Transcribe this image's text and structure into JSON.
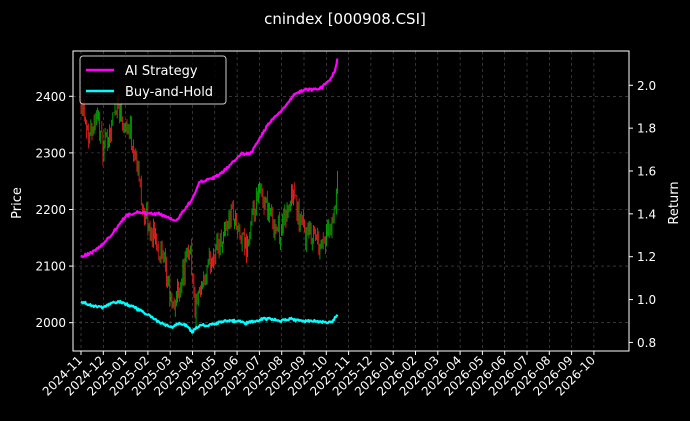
{
  "chart_data": {
    "type": "line",
    "title": "cnindex [000908.CSI]",
    "xlabel": "",
    "ylabel_left": "Price",
    "ylabel_right": "Return",
    "grid": true,
    "legend_position": "top-left",
    "x_tick_labels": [
      "2024-11",
      "2024-12",
      "2025-01",
      "2025-02",
      "2025-03",
      "2025-04",
      "2025-05",
      "2025-06",
      "2025-07",
      "2025-08",
      "2025-09",
      "2025-10",
      "2025-11",
      "2025-12",
      "2026-01",
      "2026-02",
      "2026-03",
      "2026-04",
      "2026-05",
      "2026-06",
      "2026-07",
      "2026-08",
      "2026-09",
      "2026-10"
    ],
    "y_left": {
      "ticks": [
        2000,
        2100,
        2200,
        2300,
        2400
      ],
      "ylim": [
        1950,
        2480
      ]
    },
    "y_right": {
      "ticks": [
        0.8,
        1.0,
        1.2,
        1.4,
        1.6,
        1.8,
        2.0
      ],
      "ylim": [
        0.76,
        2.16
      ]
    },
    "colors": {
      "up": "#00c000",
      "down": "#ff2020",
      "ai": "#ff00ff",
      "bh": "#00ffff"
    },
    "price_path": [
      {
        "m": 0.0,
        "v": 2400
      },
      {
        "m": 0.2,
        "v": 2360
      },
      {
        "m": 0.4,
        "v": 2330
      },
      {
        "m": 0.7,
        "v": 2380
      },
      {
        "m": 1.0,
        "v": 2300
      },
      {
        "m": 1.3,
        "v": 2340
      },
      {
        "m": 1.6,
        "v": 2390
      },
      {
        "m": 1.9,
        "v": 2360
      },
      {
        "m": 2.2,
        "v": 2340
      },
      {
        "m": 2.5,
        "v": 2280
      },
      {
        "m": 2.8,
        "v": 2200
      },
      {
        "m": 3.1,
        "v": 2160
      },
      {
        "m": 3.4,
        "v": 2150
      },
      {
        "m": 3.7,
        "v": 2100
      },
      {
        "m": 3.9,
        "v": 2070
      },
      {
        "m": 4.1,
        "v": 2020
      },
      {
        "m": 4.3,
        "v": 2050
      },
      {
        "m": 4.6,
        "v": 2090
      },
      {
        "m": 4.9,
        "v": 2140
      },
      {
        "m": 5.1,
        "v": 2020
      },
      {
        "m": 5.3,
        "v": 2040
      },
      {
        "m": 5.6,
        "v": 2080
      },
      {
        "m": 5.9,
        "v": 2120
      },
      {
        "m": 6.2,
        "v": 2140
      },
      {
        "m": 6.5,
        "v": 2170
      },
      {
        "m": 6.8,
        "v": 2200
      },
      {
        "m": 7.1,
        "v": 2150
      },
      {
        "m": 7.4,
        "v": 2130
      },
      {
        "m": 7.7,
        "v": 2180
      },
      {
        "m": 8.0,
        "v": 2230
      },
      {
        "m": 8.3,
        "v": 2210
      },
      {
        "m": 8.6,
        "v": 2180
      },
      {
        "m": 8.9,
        "v": 2160
      },
      {
        "m": 9.2,
        "v": 2190
      },
      {
        "m": 9.5,
        "v": 2230
      },
      {
        "m": 9.8,
        "v": 2180
      },
      {
        "m": 10.1,
        "v": 2150
      },
      {
        "m": 10.4,
        "v": 2160
      },
      {
        "m": 10.7,
        "v": 2140
      },
      {
        "m": 11.0,
        "v": 2150
      },
      {
        "m": 11.3,
        "v": 2170
      },
      {
        "m": 11.5,
        "v": 2240
      }
    ],
    "series": [
      {
        "name": "AI Strategy",
        "color": "#ff00ff",
        "points": [
          {
            "m": 0.0,
            "v": 1.2
          },
          {
            "m": 0.5,
            "v": 1.22
          },
          {
            "m": 1.0,
            "v": 1.26
          },
          {
            "m": 1.5,
            "v": 1.32
          },
          {
            "m": 2.0,
            "v": 1.39
          },
          {
            "m": 2.5,
            "v": 1.41
          },
          {
            "m": 3.0,
            "v": 1.4
          },
          {
            "m": 3.5,
            "v": 1.4
          },
          {
            "m": 4.0,
            "v": 1.38
          },
          {
            "m": 4.3,
            "v": 1.37
          },
          {
            "m": 4.7,
            "v": 1.43
          },
          {
            "m": 5.0,
            "v": 1.47
          },
          {
            "m": 5.3,
            "v": 1.55
          },
          {
            "m": 5.8,
            "v": 1.56
          },
          {
            "m": 6.3,
            "v": 1.59
          },
          {
            "m": 6.8,
            "v": 1.64
          },
          {
            "m": 7.2,
            "v": 1.68
          },
          {
            "m": 7.6,
            "v": 1.68
          },
          {
            "m": 8.0,
            "v": 1.75
          },
          {
            "m": 8.4,
            "v": 1.82
          },
          {
            "m": 8.8,
            "v": 1.86
          },
          {
            "m": 9.2,
            "v": 1.91
          },
          {
            "m": 9.6,
            "v": 1.96
          },
          {
            "m": 10.0,
            "v": 1.98
          },
          {
            "m": 10.4,
            "v": 1.98
          },
          {
            "m": 10.8,
            "v": 1.99
          },
          {
            "m": 11.2,
            "v": 2.03
          },
          {
            "m": 11.4,
            "v": 2.07
          },
          {
            "m": 11.5,
            "v": 2.12
          }
        ]
      },
      {
        "name": "Buy-and-Hold",
        "color": "#00ffff",
        "points": [
          {
            "m": 0.0,
            "v": 0.99
          },
          {
            "m": 0.3,
            "v": 0.98
          },
          {
            "m": 0.6,
            "v": 0.97
          },
          {
            "m": 1.0,
            "v": 0.96
          },
          {
            "m": 1.3,
            "v": 0.98
          },
          {
            "m": 1.7,
            "v": 0.99
          },
          {
            "m": 2.0,
            "v": 0.98
          },
          {
            "m": 2.3,
            "v": 0.97
          },
          {
            "m": 2.6,
            "v": 0.95
          },
          {
            "m": 3.0,
            "v": 0.93
          },
          {
            "m": 3.4,
            "v": 0.9
          },
          {
            "m": 3.8,
            "v": 0.88
          },
          {
            "m": 4.1,
            "v": 0.87
          },
          {
            "m": 4.4,
            "v": 0.89
          },
          {
            "m": 4.7,
            "v": 0.88
          },
          {
            "m": 5.0,
            "v": 0.85
          },
          {
            "m": 5.3,
            "v": 0.88
          },
          {
            "m": 5.7,
            "v": 0.88
          },
          {
            "m": 6.1,
            "v": 0.89
          },
          {
            "m": 6.5,
            "v": 0.9
          },
          {
            "m": 7.0,
            "v": 0.9
          },
          {
            "m": 7.4,
            "v": 0.89
          },
          {
            "m": 7.8,
            "v": 0.9
          },
          {
            "m": 8.2,
            "v": 0.91
          },
          {
            "m": 8.6,
            "v": 0.91
          },
          {
            "m": 9.0,
            "v": 0.9
          },
          {
            "m": 9.4,
            "v": 0.91
          },
          {
            "m": 9.8,
            "v": 0.9
          },
          {
            "m": 10.2,
            "v": 0.9
          },
          {
            "m": 10.6,
            "v": 0.9
          },
          {
            "m": 11.0,
            "v": 0.89
          },
          {
            "m": 11.3,
            "v": 0.9
          },
          {
            "m": 11.5,
            "v": 0.93
          }
        ]
      }
    ]
  }
}
